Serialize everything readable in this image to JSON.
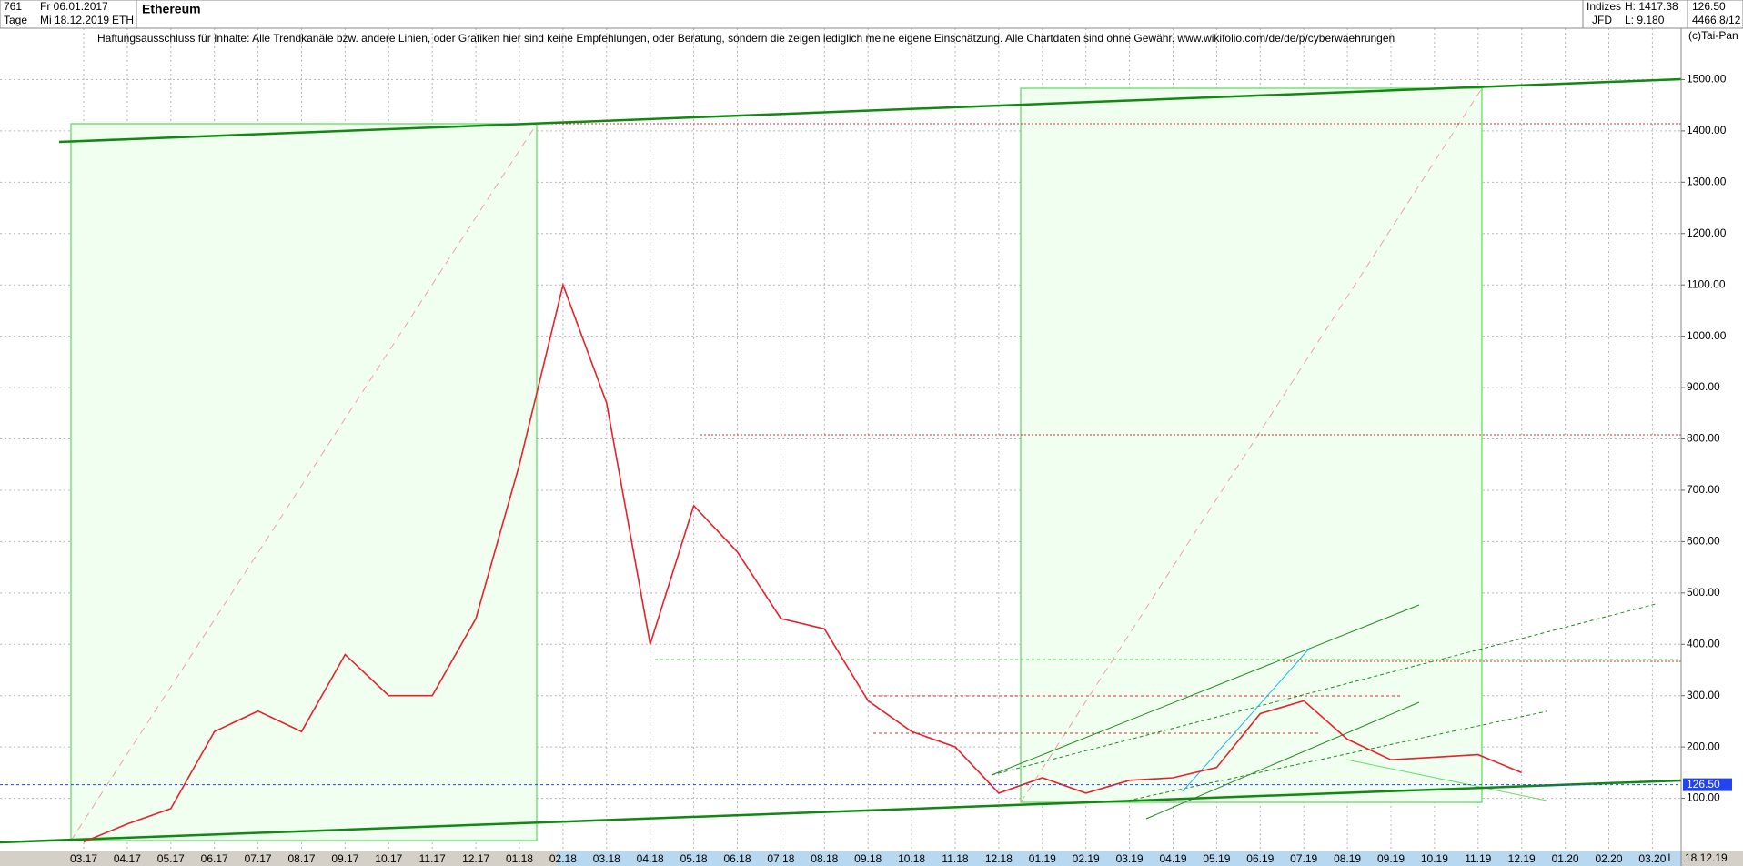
{
  "chart_data": {
    "type": "line",
    "title": "Ethereum",
    "header": {
      "count": "761",
      "start_date": "Fr 06.01.2017",
      "period": "Tage",
      "end_date": "Mi 18.12.2019",
      "symbol": "ETH",
      "group": "Indizes",
      "high": "H: 1417.38",
      "last": "126.50",
      "broker": "JFD",
      "low": "L: 9.180",
      "extra": "4466.8/12",
      "copyright": "(c)Tai-Pan",
      "disclaimer": "Haftungsausschluss für Inhalte: Alle Trendkanäle bzw. andere Linien, oder Grafiken hier sind keine Empfehlungen, oder Beratung, sondern die zeigen lediglich meine eigene Einschätzung. Alle Chartdaten sind ohne Gewähr.  www.wikifolio.com/de/de/p/cyberwaehrungen",
      "axis_date": "18.12.19",
      "axis_mode": "L"
    },
    "categories": [
      "03.17",
      "04.17",
      "05.17",
      "06.17",
      "07.17",
      "08.17",
      "09.17",
      "10.17",
      "11.17",
      "12.17",
      "01.18",
      "02.18",
      "03.18",
      "04.18",
      "05.18",
      "06.18",
      "07.18",
      "08.18",
      "09.18",
      "10.18",
      "11.18",
      "12.18",
      "01.19",
      "02.19",
      "03.19",
      "04.19",
      "05.19",
      "06.19",
      "07.19",
      "08.19",
      "09.19",
      "10.19",
      "11.19",
      "12.19",
      "01.20",
      "02.20",
      "03.20"
    ],
    "series": [
      {
        "name": "ETH",
        "color": "#e8202a",
        "values": [
          15,
          50,
          80,
          230,
          270,
          230,
          380,
          300,
          300,
          450,
          750,
          1100,
          870,
          400,
          670,
          580,
          450,
          430,
          290,
          230,
          200,
          110,
          140,
          110,
          135,
          140,
          160,
          265,
          290,
          215,
          175,
          180,
          185,
          150,
          null,
          null,
          null
        ]
      }
    ],
    "price_marker": {
      "value": 126.5,
      "label": "126.50"
    },
    "ylim": [
      0,
      1600
    ],
    "yticks": [
      {
        "value": 100,
        "label": "100.00"
      },
      {
        "value": 200,
        "label": "200.00"
      },
      {
        "value": 300,
        "label": "300.00"
      },
      {
        "value": 400,
        "label": "400.00"
      },
      {
        "value": 500,
        "label": "500.00"
      },
      {
        "value": 600,
        "label": "600.00"
      },
      {
        "value": 700,
        "label": "700.00"
      },
      {
        "value": 800,
        "label": "800.00"
      },
      {
        "value": 900,
        "label": "900.00"
      },
      {
        "value": 1000,
        "label": "1000.00"
      },
      {
        "value": 1100,
        "label": "1100.00"
      },
      {
        "value": 1200,
        "label": "1200.00"
      },
      {
        "value": 1300,
        "label": "1300.00"
      },
      {
        "value": 1400,
        "label": "1400.00"
      },
      {
        "value": 1500,
        "label": "1500.00"
      }
    ],
    "grid": true
  }
}
